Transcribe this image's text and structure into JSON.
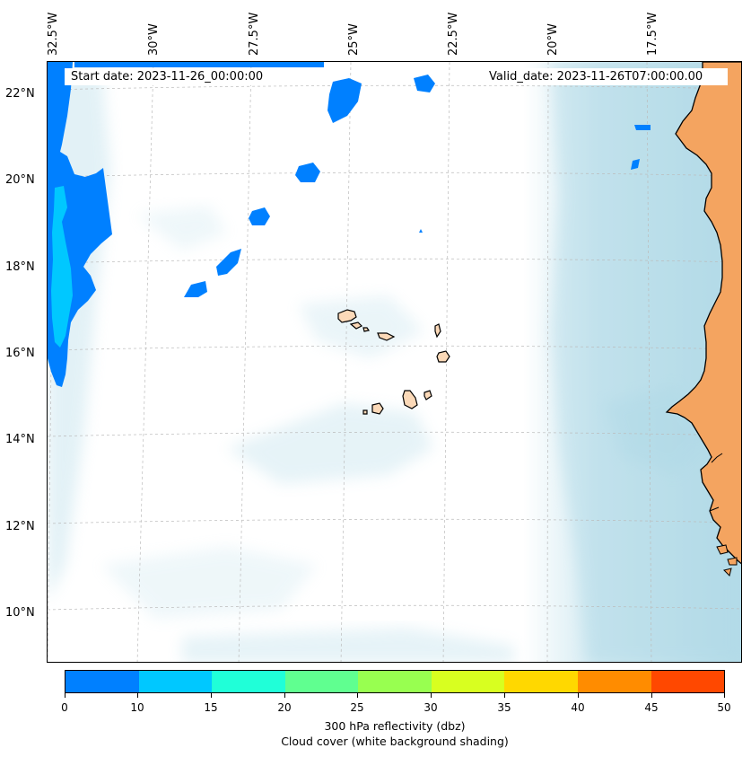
{
  "map": {
    "longitude_labels": [
      "32.5°W",
      "30°W",
      "27.5°W",
      "25°W",
      "22.5°W",
      "20°W",
      "17.5°W"
    ],
    "latitude_labels": [
      "22°N",
      "20°N",
      "18°N",
      "16°N",
      "14°N",
      "12°N",
      "10°N"
    ],
    "start_date": "Start date: 2023-11-26_00:00:00",
    "valid_date": "Valid_date: 2023-11-26T07:00:00.00",
    "ocean_color": "#ffffff",
    "cloud_color": "#add8e6",
    "land_color": "#f4a460",
    "island_color": "#fbd9b8"
  },
  "colorbar": {
    "ticks": [
      "0",
      "10",
      "15",
      "20",
      "25",
      "30",
      "35",
      "40",
      "45",
      "50"
    ],
    "colors": [
      "#0080ff",
      "#00c8ff",
      "#20ffd8",
      "#60ff90",
      "#98ff50",
      "#d8ff20",
      "#ffd800",
      "#ff8c00",
      "#ff4800"
    ],
    "label": "300 hPa reflectivity (dbz)",
    "sublabel": "Cloud cover (white background shading)"
  }
}
